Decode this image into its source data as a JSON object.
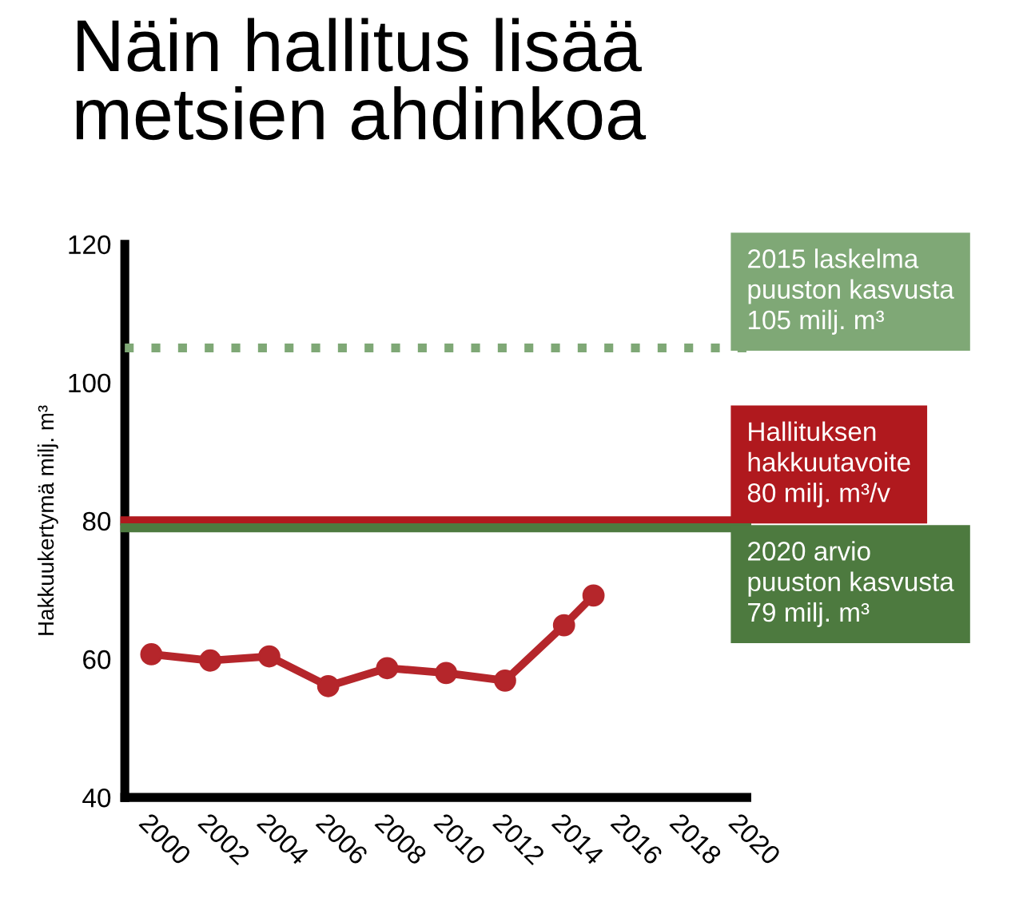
{
  "chart_data": {
    "type": "line",
    "title": "Näin hallitus lisää\nmetsien ahdinkoa",
    "ylabel": "Hakkuukertymä milj. m³",
    "x": [
      2000,
      2002,
      2004,
      2006,
      2008,
      2010,
      2012,
      2014,
      2015
    ],
    "series": [
      {
        "color": "#b5262b",
        "values": [
          60.7,
          59.8,
          60.4,
          56.1,
          58.7,
          58.0,
          56.9,
          64.9,
          69.2
        ]
      }
    ],
    "xlim": [
      1999.1,
      2020.2
    ],
    "xticks": [
      2000,
      2002,
      2004,
      2006,
      2008,
      2010,
      2012,
      2014,
      2016,
      2018,
      2020
    ],
    "ylim": [
      40,
      120
    ],
    "yticks": [
      40,
      60,
      80,
      100,
      120
    ],
    "ref_lines": [
      {
        "axis": "y",
        "value": 105,
        "label": "2015 laskelma\npuuston kasvusta\n105 milj. m³",
        "color": "#7fa876",
        "line_style": "dotted"
      },
      {
        "axis": "y",
        "value": 80,
        "label": "Hallituksen\nhakkuutavoite\n80 milj. m³/v",
        "color": "#b0191e",
        "line_style": "solid"
      },
      {
        "axis": "y",
        "value": 79,
        "label": "2020 arvio\npuuston kasvusta\n79 milj. m³",
        "color": "#4d7a3f",
        "line_style": "solid"
      }
    ],
    "marker": "circle",
    "line_style": "solid",
    "grid": false,
    "legend": false
  }
}
